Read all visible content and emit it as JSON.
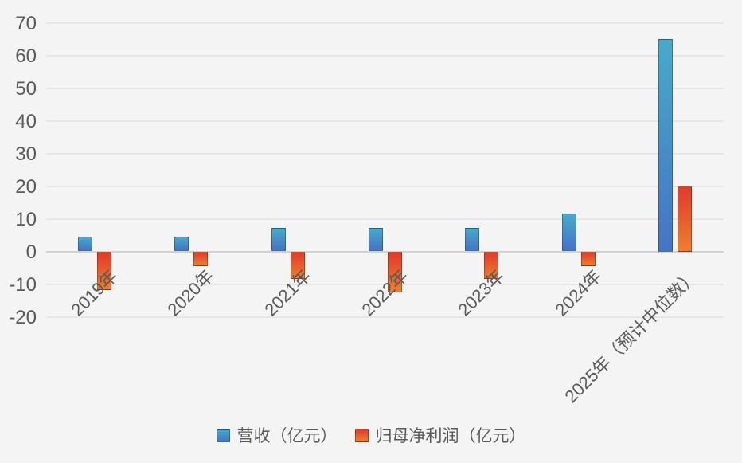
{
  "chart_data": {
    "type": "bar",
    "title": "",
    "categories": [
      "2019年",
      "2020年",
      "2021年",
      "2022年",
      "2023年",
      "2024年",
      "2025年（预计中位数）"
    ],
    "series": [
      {
        "name": "营收（亿元）",
        "values": [
          4.4,
          4.6,
          7.2,
          7.3,
          7.1,
          11.7,
          65
        ],
        "color_top": "#47aac9",
        "color_bottom": "#4673c6"
      },
      {
        "name": "归母净利润（亿元）",
        "values": [
          -11.8,
          -4.4,
          -8.3,
          -12.6,
          -8.5,
          -4.5,
          20
        ],
        "color_top": "#e23a2c",
        "color_bottom": "#ec7f2f"
      }
    ],
    "xlabel": "",
    "ylabel": "",
    "ylim": [
      -20,
      70
    ],
    "yticks": [
      70,
      60,
      50,
      40,
      30,
      20,
      10,
      0,
      -10,
      -20
    ],
    "grid": true,
    "legend_position": "bottom"
  },
  "colors": {
    "background": "#f4f4f4",
    "gridline": "#e6e6e6",
    "zero_line": "#d2d2d2",
    "text": "#595959",
    "series1_top": "#47aac9",
    "series1_bottom": "#4673c6",
    "series2_top": "#e23a2c",
    "series2_bottom": "#ec7f2f"
  },
  "legend": {
    "items": [
      {
        "label": "营收（亿元）"
      },
      {
        "label": "归母净利润（亿元）"
      }
    ]
  }
}
